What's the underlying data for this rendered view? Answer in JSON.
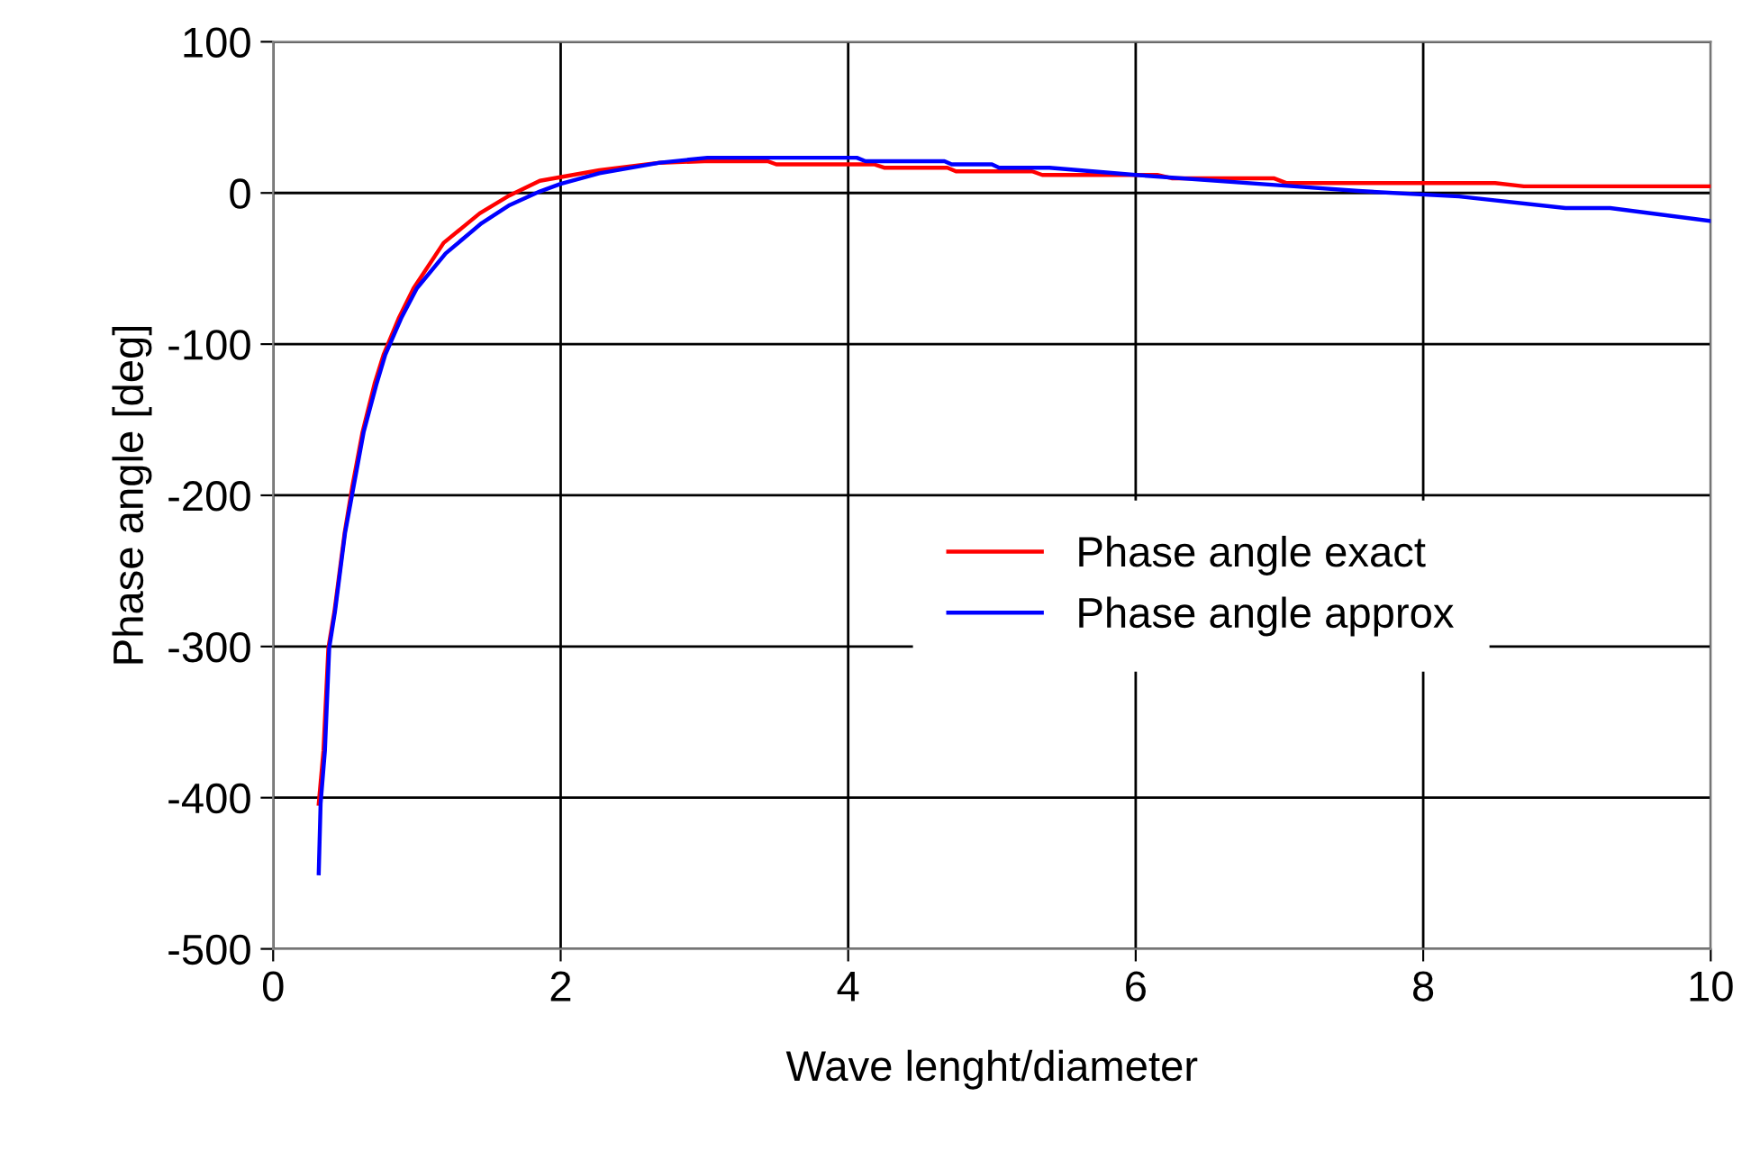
{
  "chart_data": {
    "type": "line",
    "xlabel": "Wave lenght/diameter",
    "ylabel": "Phase angle [deg]",
    "xlim": [
      0,
      10
    ],
    "xticks": [
      0,
      2,
      4,
      6,
      8,
      10
    ],
    "ylim": [
      -500,
      100
    ],
    "yticks": [
      -500,
      -400,
      -300,
      -200,
      -100,
      0,
      100
    ],
    "grid": true,
    "legend": "right",
    "marker": "none",
    "line_style": "solid",
    "series": [
      {
        "name": "Phase angle exact",
        "color": "#ff0000",
        "x": [
          0.317,
          0.35,
          0.384,
          0.426,
          0.497,
          0.551,
          0.622,
          0.706,
          0.768,
          0.873,
          0.977,
          1.186,
          1.437,
          1.645,
          1.855,
          2.27,
          2.69,
          3.0,
          3.44,
          3.5,
          4.18,
          4.25,
          4.69,
          4.75,
          5.28,
          5.35,
          6.15,
          6.25,
          6.96,
          7.05,
          8.5,
          8.7,
          10
        ],
        "values": [
          -404,
          -369,
          -301,
          -277,
          -225,
          -194,
          -158,
          -126,
          -107,
          -83,
          -63,
          -33,
          -13.5,
          -1.6,
          8,
          15,
          20,
          21,
          21,
          18.9,
          18.9,
          16.7,
          16.7,
          14.3,
          14.3,
          11.9,
          11.9,
          9.7,
          9.7,
          6.5,
          6.5,
          4.4,
          4.4
        ]
      },
      {
        "name": "Phase angle approx",
        "color": "#0000ff",
        "x": [
          0.317,
          0.33,
          0.36,
          0.39,
          0.43,
          0.5,
          0.56,
          0.63,
          0.72,
          0.78,
          0.89,
          1.0,
          1.2,
          1.45,
          1.645,
          1.855,
          2.0,
          2.27,
          2.69,
          3.02,
          4.06,
          4.12,
          4.67,
          4.72,
          5.0,
          5.05,
          5.4,
          6.0,
          7.1,
          7.55,
          8.25,
          8.99,
          9.3,
          10
        ],
        "values": [
          -450,
          -404,
          -369,
          -301,
          -277,
          -225,
          -194,
          -158,
          -126,
          -107,
          -83,
          -63,
          -40,
          -20,
          -8,
          1,
          6,
          13,
          20,
          23.3,
          23.3,
          21,
          21,
          18.9,
          18.9,
          16.7,
          16.7,
          11.9,
          4.4,
          1.3,
          -2.3,
          -10,
          -10,
          -18.6
        ]
      }
    ]
  }
}
